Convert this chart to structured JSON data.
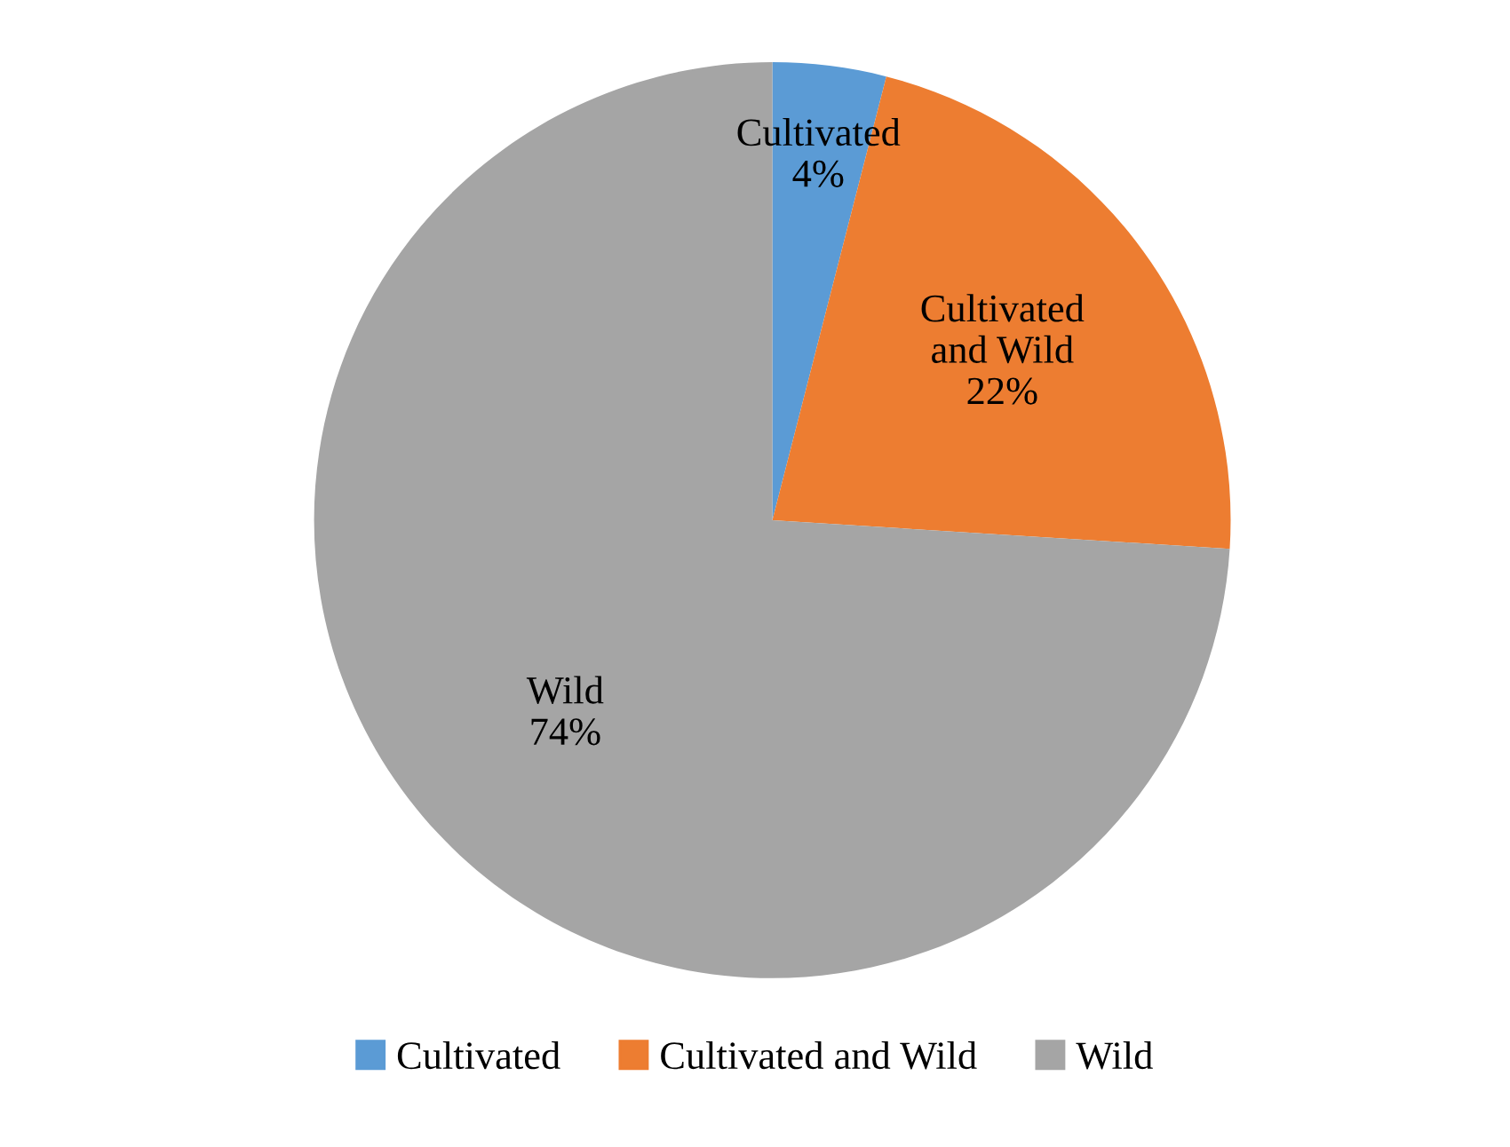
{
  "chart_data": {
    "type": "pie",
    "categories": [
      "Cultivated",
      "Cultivated and Wild",
      "Wild"
    ],
    "values": [
      4,
      22,
      74
    ],
    "colors": [
      "#5b9bd5",
      "#ed7d31",
      "#a5a5a5"
    ],
    "value_labels": [
      "4%",
      "22%",
      "74%"
    ],
    "legend": "bottom"
  }
}
